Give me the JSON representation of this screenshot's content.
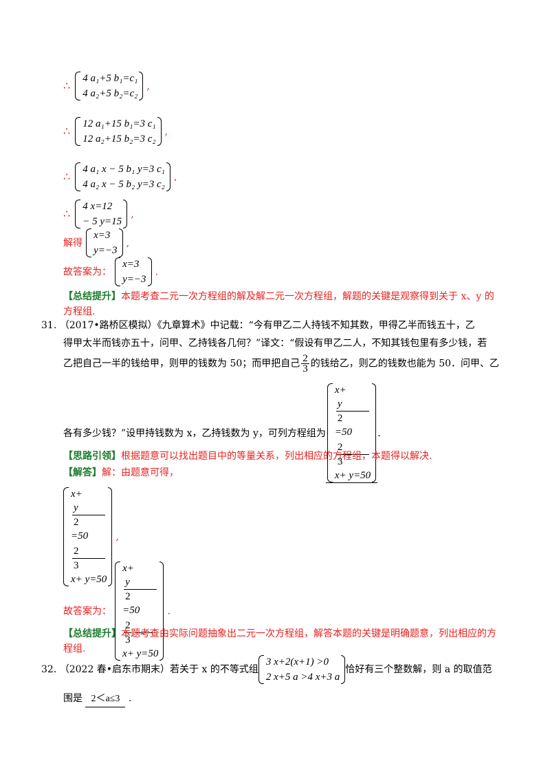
{
  "top_steps": [
    {
      "prefix": "∴",
      "lines": [
        "4 a₁+5 b₁=c₁",
        "4 a₂+5 b₂=c₂"
      ],
      "suffix": ","
    },
    {
      "prefix": "∴",
      "lines": [
        "12 a₁+15 b₁=3 c₁",
        "12 a₂+15 b₂=3 c₂"
      ],
      "suffix": ","
    },
    {
      "prefix": "∴",
      "lines": [
        "4 a₁ x − 5 b₁ y=3 c₁",
        "4 a₂ x − 5 b₂ y=3 c₂"
      ],
      "suffix": ","
    },
    {
      "prefix": "∴",
      "lines": [
        "4 x=12",
        "− 5 y=15"
      ],
      "suffix": ","
    },
    {
      "prefix": "解得",
      "lines": [
        "x=3",
        "y=−3"
      ],
      "suffix": ","
    },
    {
      "prefix": "故答案为：",
      "lines": [
        "x=3",
        "y=−3"
      ],
      "suffix": "."
    }
  ],
  "summary1": {
    "tag": "【总结提升】",
    "line1": "本题考查二元一次方程组的解及解二元一次方程组，解题的关键是观察得到关于 x、y 的",
    "line2": "方程组."
  },
  "q31": {
    "number": "31.",
    "line1": "（2017•路桥区模拟）《九章算术》中记载：“今有甲乙二人持钱不知其数，甲得乙半而钱五十，乙",
    "line2": "得甲太半而钱亦五十，问甲、乙持钱各几何？”译文：“假设有甲乙二人，不知其钱包里有多少钱，若",
    "line3a": "乙把自己一半的钱给甲，则甲的钱数为 50；而甲把自己",
    "frac_num": "2",
    "frac_den": "3",
    "line3b": "的钱给乙，则乙的钱数也能为 50．问甲、乙",
    "line4a": "各有多少钱？”设甲持钱数为 x，乙持钱数为 y，可列方程组为",
    "line4b": "."
  },
  "answer_system": {
    "eq1_a": "x+",
    "eq1_num": "y",
    "eq1_den": "2",
    "eq1_b": "=50",
    "eq2_num": "2",
    "eq2_den": "3",
    "eq2_b": "x+ y=50"
  },
  "hint": {
    "tag": "【思路引领】",
    "text": "根据题意可以找出题目中的等量关系，列出相应的方程组，本题得以解决."
  },
  "solution": {
    "tag": "【解答】",
    "text": "解：由题意可得，",
    "answer_prefix": "故答案为：",
    "comma": ",",
    "period": "."
  },
  "summary2": {
    "tag": "【总结提升】",
    "line1": "本题考查由实际问题抽象出二元一次方程组，解答本题的关键是明确题意，列出相应的方",
    "line2": "程组."
  },
  "q32": {
    "number": "32.",
    "prefix": "（2022 春•启东市期末）若关于 x 的不等式组",
    "ineq1": "3 x+2(x+1) >0",
    "ineq2": "2 x+5 a >4 x+3 a",
    "suffix": "恰好有三个整数解，则 a 的取值范",
    "line2_prefix": "围是",
    "answer": "2＜a≤3",
    "line2_suffix": "."
  }
}
